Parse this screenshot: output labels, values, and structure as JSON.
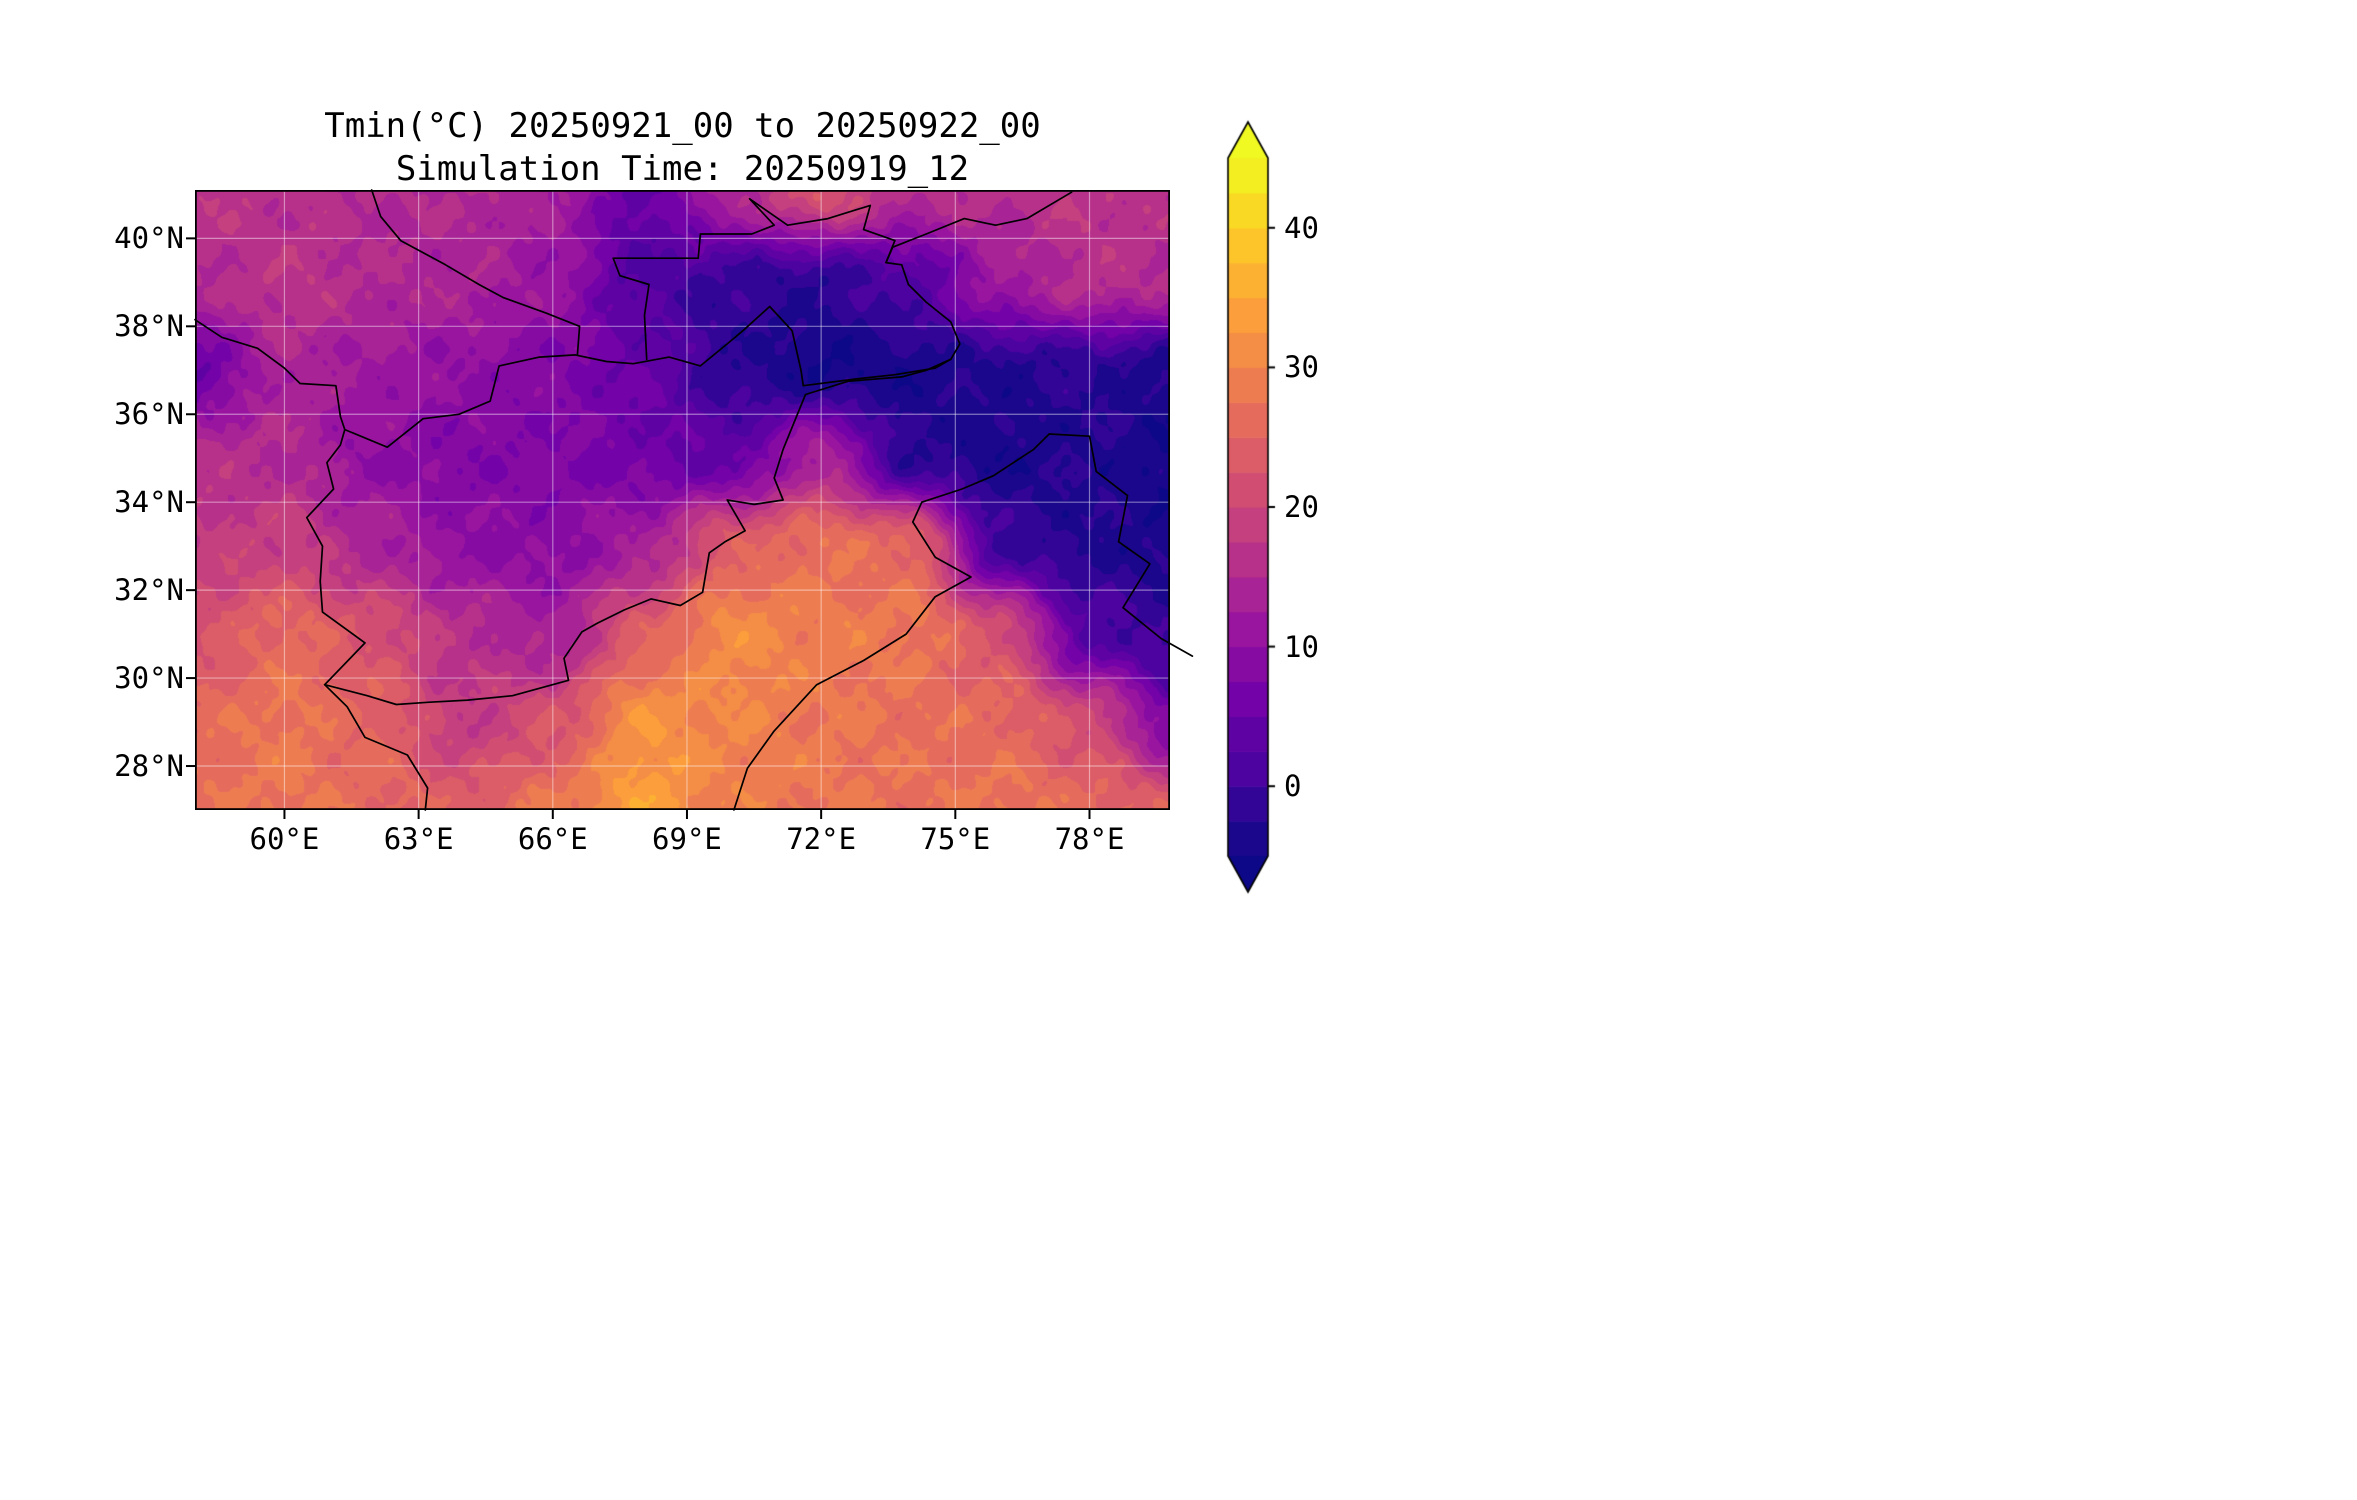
{
  "figure": {
    "title": "Tmin(°C) 20250921_00 to 20250922_00",
    "subtitle": "Simulation Time: 20250919_12"
  },
  "chart_data": {
    "type": "heatmap",
    "title": "Tmin(°C) 20250921_00 to 20250922_00",
    "subtitle": "Simulation Time: 20250919_12",
    "variable": "Tmin",
    "units": "°C",
    "x_axis": {
      "tick_values": [
        60,
        63,
        66,
        69,
        72,
        75,
        78
      ],
      "tick_labels": [
        "60°E",
        "63°E",
        "66°E",
        "69°E",
        "72°E",
        "75°E",
        "78°E"
      ],
      "range": [
        58.0,
        79.8
      ]
    },
    "y_axis": {
      "tick_values": [
        40,
        38,
        36,
        34,
        32,
        30,
        28
      ],
      "tick_labels": [
        "40°N",
        "38°N",
        "36°N",
        "34°N",
        "32°N",
        "30°N",
        "28°N"
      ],
      "range": [
        27.0,
        41.1
      ]
    },
    "colorbar": {
      "colormap": "plasma",
      "vmin": -5,
      "vmax": 45,
      "level_step": 2.5,
      "extend": "both",
      "tick_values": [
        40,
        30,
        20,
        10,
        0
      ],
      "tick_labels": [
        "40",
        "30",
        "20",
        "10",
        "0"
      ]
    },
    "gridlines": {
      "lons": [
        60,
        63,
        66,
        69,
        72,
        75,
        78
      ],
      "lats": [
        28,
        30,
        32,
        34,
        36,
        38,
        40
      ]
    },
    "grid": {
      "lon": [
        58,
        60,
        62,
        64,
        66,
        68,
        70,
        72,
        74,
        76,
        78,
        80
      ],
      "lat": [
        41,
        39,
        37,
        35,
        33,
        31,
        29,
        27
      ],
      "tmin_c": [
        [
          17,
          16,
          15,
          15,
          13,
          4,
          14,
          22,
          15,
          16,
          17,
          16
        ],
        [
          15,
          17,
          15,
          14,
          11,
          2,
          -1,
          -2,
          2,
          12,
          16,
          15
        ],
        [
          5,
          14,
          12,
          10,
          8,
          5,
          -2,
          -5,
          -4,
          -3,
          -2,
          -4
        ],
        [
          16,
          15,
          10,
          8,
          8,
          6,
          4,
          14,
          -2,
          -4,
          -3,
          -5
        ],
        [
          18,
          19,
          14,
          10,
          9,
          13,
          24,
          27,
          26,
          0,
          -3,
          -4
        ],
        [
          22,
          26,
          22,
          16,
          13,
          24,
          31,
          29,
          28,
          22,
          2,
          -1
        ],
        [
          26,
          28,
          25,
          18,
          22,
          32,
          30,
          28,
          27,
          26,
          21,
          6
        ],
        [
          27,
          28,
          26,
          24,
          28,
          34,
          29,
          28,
          27,
          28,
          26,
          24
        ]
      ]
    },
    "borders": [
      [
        [
          58.0,
          38.15
        ],
        [
          58.6,
          37.75
        ],
        [
          59.4,
          37.5
        ],
        [
          60.0,
          37.05
        ],
        [
          60.35,
          36.7
        ],
        [
          61.15,
          36.65
        ],
        [
          61.25,
          35.95
        ],
        [
          61.35,
          35.65
        ]
      ],
      [
        [
          61.35,
          35.65
        ],
        [
          62.3,
          35.25
        ],
        [
          63.1,
          35.9
        ],
        [
          63.9,
          36.0
        ],
        [
          64.6,
          36.3
        ],
        [
          64.8,
          37.1
        ],
        [
          65.7,
          37.3
        ],
        [
          66.5,
          37.35
        ],
        [
          67.2,
          37.2
        ],
        [
          67.8,
          37.15
        ],
        [
          68.6,
          37.3
        ],
        [
          69.3,
          37.1
        ],
        [
          69.9,
          37.6
        ],
        [
          70.25,
          37.9
        ],
        [
          70.85,
          38.45
        ],
        [
          71.35,
          37.9
        ],
        [
          71.55,
          37.0
        ],
        [
          71.6,
          36.65
        ],
        [
          72.75,
          36.8
        ],
        [
          73.65,
          36.9
        ],
        [
          74.55,
          37.05
        ],
        [
          74.9,
          37.25
        ]
      ],
      [
        [
          74.9,
          37.25
        ],
        [
          74.35,
          37.0
        ],
        [
          73.8,
          36.85
        ],
        [
          72.6,
          36.75
        ],
        [
          71.65,
          36.45
        ],
        [
          71.45,
          35.95
        ],
        [
          71.15,
          35.2
        ],
        [
          70.95,
          34.55
        ],
        [
          71.15,
          34.05
        ],
        [
          70.5,
          33.95
        ],
        [
          69.9,
          34.05
        ],
        [
          70.3,
          33.35
        ],
        [
          69.85,
          33.1
        ],
        [
          69.5,
          32.85
        ],
        [
          69.35,
          31.95
        ],
        [
          68.85,
          31.65
        ],
        [
          68.2,
          31.8
        ],
        [
          67.6,
          31.55
        ],
        [
          67.0,
          31.25
        ],
        [
          66.65,
          31.05
        ],
        [
          66.25,
          30.45
        ],
        [
          66.35,
          29.95
        ],
        [
          65.1,
          29.6
        ],
        [
          64.1,
          29.5
        ],
        [
          63.2,
          29.45
        ],
        [
          62.5,
          29.4
        ],
        [
          61.85,
          29.6
        ],
        [
          60.9,
          29.85
        ]
      ],
      [
        [
          60.9,
          29.85
        ],
        [
          61.8,
          30.8
        ],
        [
          60.85,
          31.5
        ],
        [
          60.8,
          32.2
        ],
        [
          60.85,
          33.0
        ],
        [
          60.5,
          33.65
        ],
        [
          61.1,
          34.3
        ],
        [
          60.95,
          34.9
        ],
        [
          61.25,
          35.3
        ],
        [
          61.35,
          35.65
        ]
      ],
      [
        [
          60.9,
          29.85
        ],
        [
          61.4,
          29.35
        ],
        [
          61.8,
          28.65
        ],
        [
          62.75,
          28.25
        ],
        [
          63.2,
          27.5
        ],
        [
          63.15,
          27.0
        ]
      ],
      [
        [
          70.05,
          27.0
        ],
        [
          70.35,
          27.95
        ],
        [
          70.95,
          28.8
        ],
        [
          71.9,
          29.85
        ],
        [
          72.95,
          30.4
        ],
        [
          73.9,
          31.0
        ],
        [
          74.55,
          31.85
        ],
        [
          75.35,
          32.3
        ],
        [
          74.55,
          32.75
        ],
        [
          74.05,
          33.55
        ],
        [
          74.25,
          34.0
        ],
        [
          75.15,
          34.3
        ],
        [
          75.85,
          34.6
        ],
        [
          76.75,
          35.2
        ],
        [
          77.1,
          35.55
        ]
      ],
      [
        [
          77.1,
          35.55
        ],
        [
          78.0,
          35.5
        ],
        [
          78.15,
          34.7
        ],
        [
          78.85,
          34.15
        ],
        [
          78.65,
          33.1
        ],
        [
          79.35,
          32.6
        ],
        [
          78.75,
          31.6
        ],
        [
          79.6,
          30.9
        ],
        [
          80.3,
          30.5
        ]
      ],
      [
        [
          74.9,
          37.25
        ],
        [
          75.1,
          37.6
        ],
        [
          74.9,
          38.1
        ],
        [
          74.35,
          38.55
        ],
        [
          73.95,
          38.95
        ],
        [
          73.8,
          39.4
        ],
        [
          73.45,
          39.45
        ],
        [
          73.6,
          39.8
        ],
        [
          74.35,
          40.1
        ],
        [
          75.2,
          40.45
        ],
        [
          75.9,
          40.3
        ],
        [
          76.6,
          40.45
        ],
        [
          77.6,
          41.05
        ]
      ],
      [
        [
          66.55,
          37.35
        ],
        [
          66.6,
          38.0
        ],
        [
          65.85,
          38.3
        ],
        [
          64.9,
          38.65
        ],
        [
          64.35,
          38.95
        ],
        [
          63.6,
          39.4
        ],
        [
          62.6,
          39.95
        ],
        [
          62.15,
          40.5
        ],
        [
          61.95,
          41.1
        ]
      ],
      [
        [
          68.1,
          37.25
        ],
        [
          68.05,
          38.25
        ],
        [
          68.15,
          38.95
        ],
        [
          67.5,
          39.15
        ],
        [
          67.35,
          39.55
        ],
        [
          68.1,
          39.55
        ],
        [
          69.25,
          39.55
        ],
        [
          69.3,
          40.1
        ],
        [
          70.45,
          40.1
        ],
        [
          70.95,
          40.3
        ],
        [
          70.4,
          40.9
        ],
        [
          71.25,
          40.3
        ],
        [
          72.15,
          40.45
        ],
        [
          73.1,
          40.75
        ],
        [
          72.95,
          40.2
        ],
        [
          73.65,
          39.95
        ],
        [
          73.45,
          39.45
        ]
      ]
    ]
  }
}
